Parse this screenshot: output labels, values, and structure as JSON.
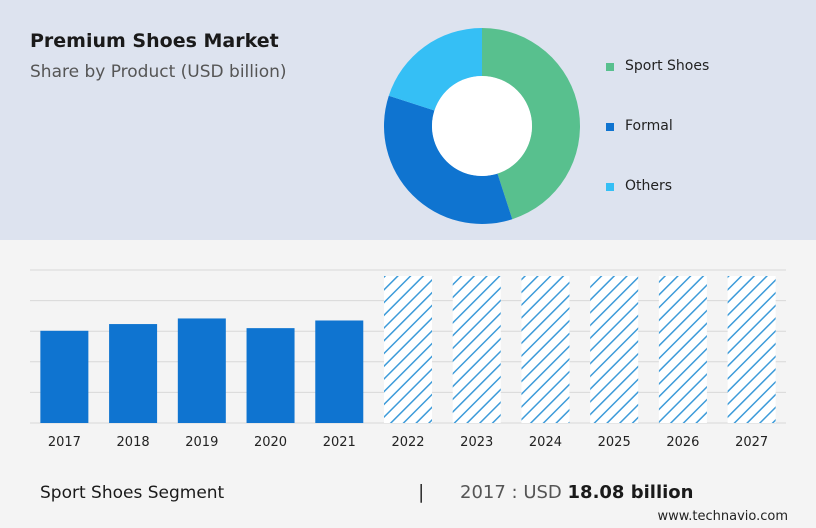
{
  "header": {
    "title": "Premium Shoes Market",
    "subtitle": "Share by Product (USD billion)"
  },
  "colors": {
    "sport": "#58c08e",
    "formal": "#0f74d0",
    "others": "#35bff5",
    "bar": "#0f74d0",
    "forecast_hatch": "#3d9bd9"
  },
  "chart_data": [
    {
      "type": "pie",
      "style": "donut",
      "labels": [
        "Sport Shoes",
        "Formal",
        "Others"
      ],
      "values": [
        45,
        35,
        20
      ],
      "legend": "right"
    },
    {
      "type": "bar",
      "categories": [
        "2017",
        "2018",
        "2019",
        "2020",
        "2021",
        "2022",
        "2023",
        "2024",
        "2025",
        "2026",
        "2027"
      ],
      "values": [
        18.08,
        19.4,
        20.5,
        18.6,
        20.1,
        null,
        null,
        null,
        null,
        null,
        null
      ],
      "forecast_categories": [
        "2022",
        "2023",
        "2024",
        "2025",
        "2026",
        "2027"
      ],
      "forecast_style": "hatched",
      "ylim": [
        0,
        30
      ],
      "grid": true
    }
  ],
  "footer": {
    "segment": "Sport Shoes Segment",
    "separator": "|",
    "year_label": "2017 : USD",
    "value_text": "18.08 billion",
    "website": "www.technavio.com"
  }
}
